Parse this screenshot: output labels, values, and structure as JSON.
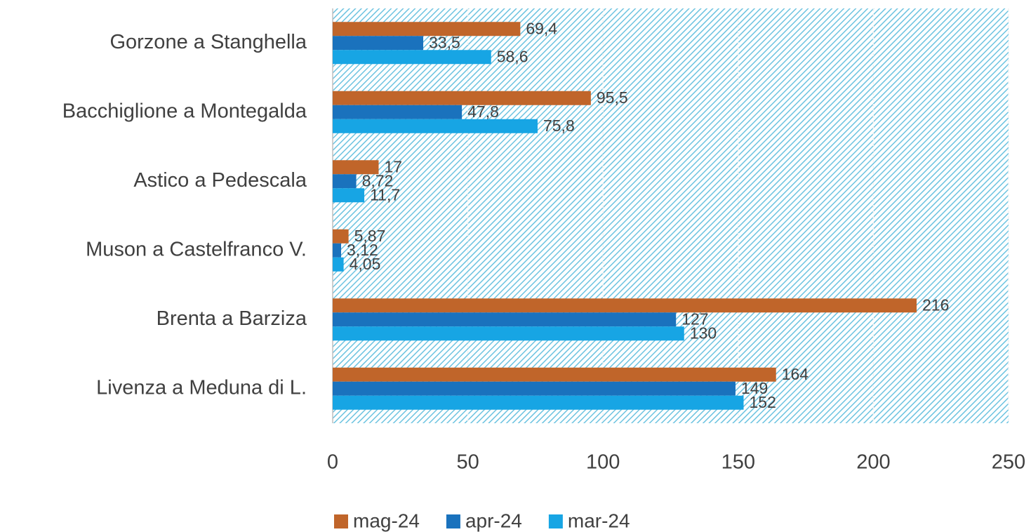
{
  "chart_data": {
    "type": "bar",
    "orientation": "horizontal",
    "categories": [
      "Gorzone a Stanghella",
      "Bacchiglione a Montegalda",
      "Astico a Pedescala",
      "Muson a Castelfranco V.",
      "Brenta a Barziza",
      "Livenza a Meduna di L."
    ],
    "series": [
      {
        "name": "mag-24",
        "color": "#c0652a",
        "values": [
          69.4,
          95.5,
          17,
          5.87,
          216,
          164
        ],
        "value_labels": [
          "69,4",
          "95,5",
          "17",
          "5,87",
          "216",
          "164"
        ]
      },
      {
        "name": "apr-24",
        "color": "#1a72bd",
        "values": [
          33.5,
          47.8,
          8.72,
          3.12,
          127,
          149
        ],
        "value_labels": [
          "33,5",
          "47,8",
          "8,72",
          "3,12",
          "127",
          "149"
        ]
      },
      {
        "name": "mar-24",
        "color": "#17a5e4",
        "values": [
          58.6,
          75.8,
          11.7,
          4.05,
          130,
          152
        ],
        "value_labels": [
          "58,6",
          "75,8",
          "11,7",
          "4,05",
          "130",
          "152"
        ]
      }
    ],
    "xlim": [
      0,
      250
    ],
    "xticks": [
      0,
      50,
      100,
      150,
      200,
      250
    ],
    "grid": true,
    "legend": "bottom"
  }
}
